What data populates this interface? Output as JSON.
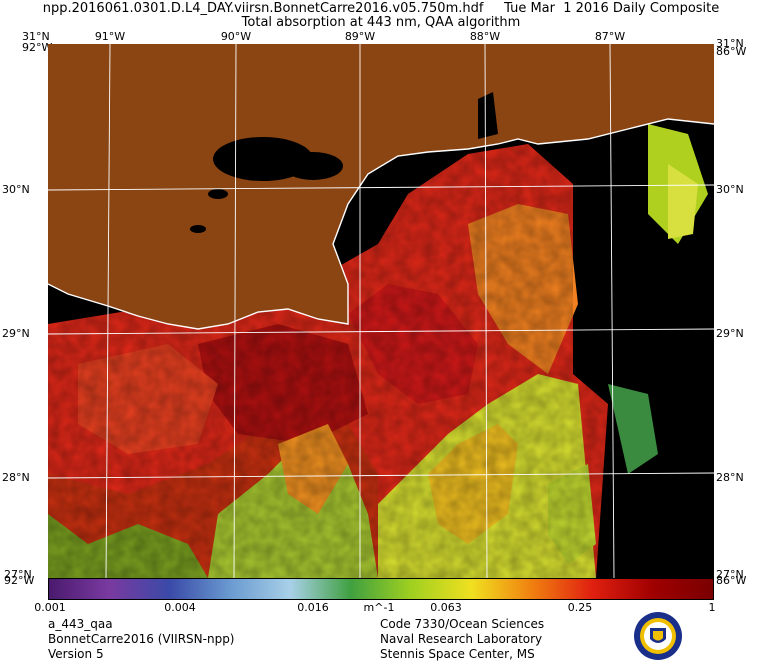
{
  "header": {
    "line1": "npp.2016061.0301.D.L4_DAY.viirsn.BonnetCarre2016.v05.750m.hdf     Tue Mar  1 2016 Daily Composite",
    "line2": "Total absorption at 443 nm, QAA algorithm"
  },
  "axes": {
    "top_labels": [
      "91°W",
      "90°W",
      "89°W",
      "88°W",
      "87°W"
    ],
    "lat_labels": [
      "30°N",
      "29°N",
      "28°N"
    ],
    "corner_top_left": "31°N",
    "corner_top_left_under": "92°W",
    "corner_bottom_left": "92°W",
    "corner_bottom_left_over": "27°N",
    "corner_top_right": "31°N",
    "corner_top_right_under": "86°W",
    "corner_bottom_right": "86°W",
    "corner_bottom_right_over": "27°N"
  },
  "colorbar": {
    "ticks": [
      "0.001",
      "0.004",
      "0.016",
      "0.063",
      "0.25",
      "1"
    ],
    "unit": "m^-1",
    "colors": [
      "#4a1a6e",
      "#7a3aa0",
      "#3a4aa8",
      "#6a9ad0",
      "#a8d0e8",
      "#40a040",
      "#a0d020",
      "#f0e020",
      "#f08010",
      "#e02010",
      "#a00000",
      "#7a0000"
    ]
  },
  "footer": {
    "left": [
      "a_443_qaa",
      "BonnetCarre2016 (VIIRSN-npp)",
      "Version 5"
    ],
    "right": [
      "Code 7330/Ocean Sciences",
      "Naval Research Laboratory",
      "Stennis Space Center, MS"
    ]
  },
  "palette": {
    "land": "#8b4513",
    "nodata": "#000000",
    "grid": "#ffffff"
  }
}
